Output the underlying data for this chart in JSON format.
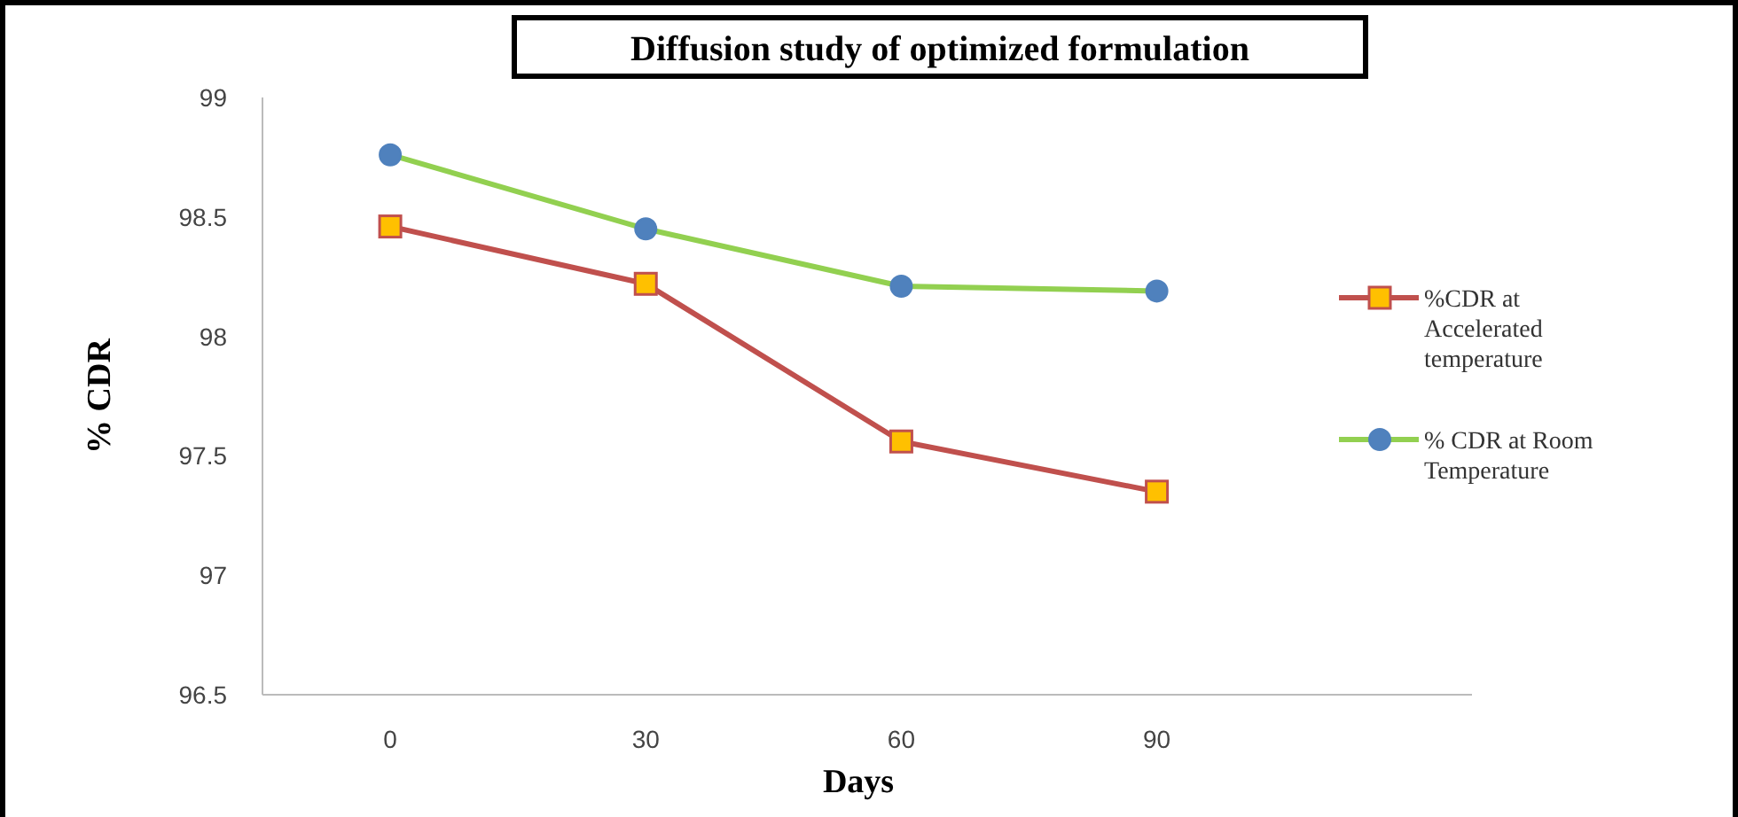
{
  "chart_data": {
    "type": "line",
    "title": "Diffusion study of optimized formulation",
    "xlabel": "Days",
    "ylabel": "% CDR",
    "x": [
      0,
      30,
      60,
      90
    ],
    "xlim": [
      -15,
      127
    ],
    "xticks": [
      0,
      30,
      60,
      90
    ],
    "ylim": [
      96.5,
      99
    ],
    "yticks": [
      96.5,
      97,
      97.5,
      98,
      98.5,
      99
    ],
    "grid": false,
    "legend": "right",
    "series": [
      {
        "name": "%CDR at Accelerated temperature",
        "color": "#c0504d",
        "marker": "square",
        "values": [
          98.46,
          98.22,
          97.56,
          97.35
        ]
      },
      {
        "name": "% CDR at Room Temperature",
        "color": "#92d050",
        "marker": "circle",
        "values": [
          98.76,
          98.45,
          98.21,
          98.19
        ]
      }
    ]
  }
}
